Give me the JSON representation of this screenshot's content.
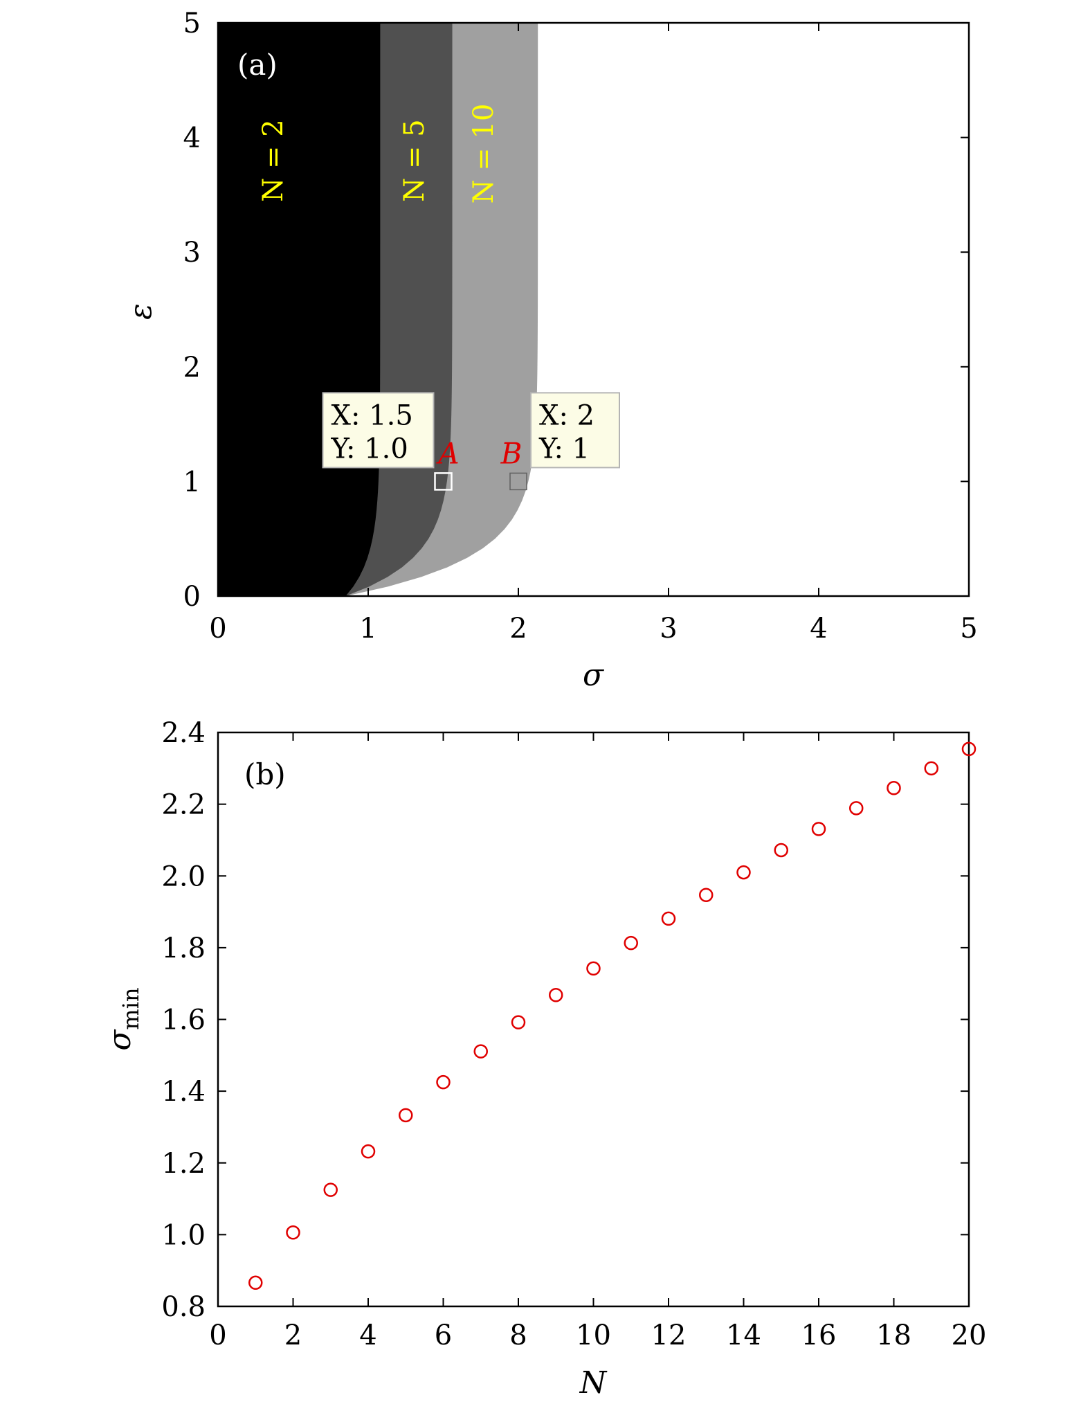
{
  "chart_data": [
    {
      "type": "area",
      "panel_label": "(a)",
      "xlabel": "σ",
      "ylabel": "ε",
      "xlim": [
        0,
        5
      ],
      "ylim": [
        0,
        5
      ],
      "xticks": [
        "0",
        "1",
        "2",
        "3",
        "4",
        "5"
      ],
      "yticks": [
        "0",
        "1",
        "2",
        "3",
        "4",
        "5"
      ],
      "grid": false,
      "colors": {
        "N2": "#000000",
        "N5": "#505050",
        "N10": "#a0a0a0"
      },
      "regions": [
        {
          "name": "N = 2",
          "sigma_at_eps0": 0.85,
          "sigma_at_eps5": 1.08
        },
        {
          "name": "N = 5",
          "sigma_at_eps0": 0.85,
          "sigma_at_eps5": 1.56
        },
        {
          "name": "N = 10",
          "sigma_at_eps0": 0.85,
          "sigma_at_eps5": 2.13
        }
      ],
      "points": [
        {
          "label": "A",
          "x": 1.5,
          "y": 1.0,
          "tip_x": "X: 1.5",
          "tip_y": "Y: 1.0"
        },
        {
          "label": "B",
          "x": 2,
          "y": 1,
          "tip_x": "X: 2",
          "tip_y": "Y: 1"
        }
      ]
    },
    {
      "type": "scatter",
      "panel_label": "(b)",
      "xlabel": "N",
      "ylabel": "σ",
      "ylabel_sub": "min",
      "xlim": [
        0,
        20
      ],
      "ylim": [
        0.8,
        2.4
      ],
      "xticks": [
        "0",
        "2",
        "4",
        "6",
        "8",
        "10",
        "12",
        "14",
        "16",
        "18",
        "20"
      ],
      "yticks": [
        "0.8",
        "1.0",
        "1.2",
        "1.4",
        "1.6",
        "1.8",
        "2.0",
        "2.2",
        "2.4"
      ],
      "grid": false,
      "marker_color": "#e00000",
      "x": [
        1,
        2,
        3,
        4,
        5,
        6,
        7,
        8,
        9,
        10,
        11,
        12,
        13,
        14,
        15,
        16,
        17,
        18,
        19,
        20
      ],
      "y": [
        0.866,
        1.006,
        1.125,
        1.232,
        1.333,
        1.425,
        1.511,
        1.592,
        1.668,
        1.742,
        1.813,
        1.881,
        1.947,
        2.01,
        2.072,
        2.131,
        2.189,
        2.245,
        2.3,
        2.354
      ]
    }
  ]
}
